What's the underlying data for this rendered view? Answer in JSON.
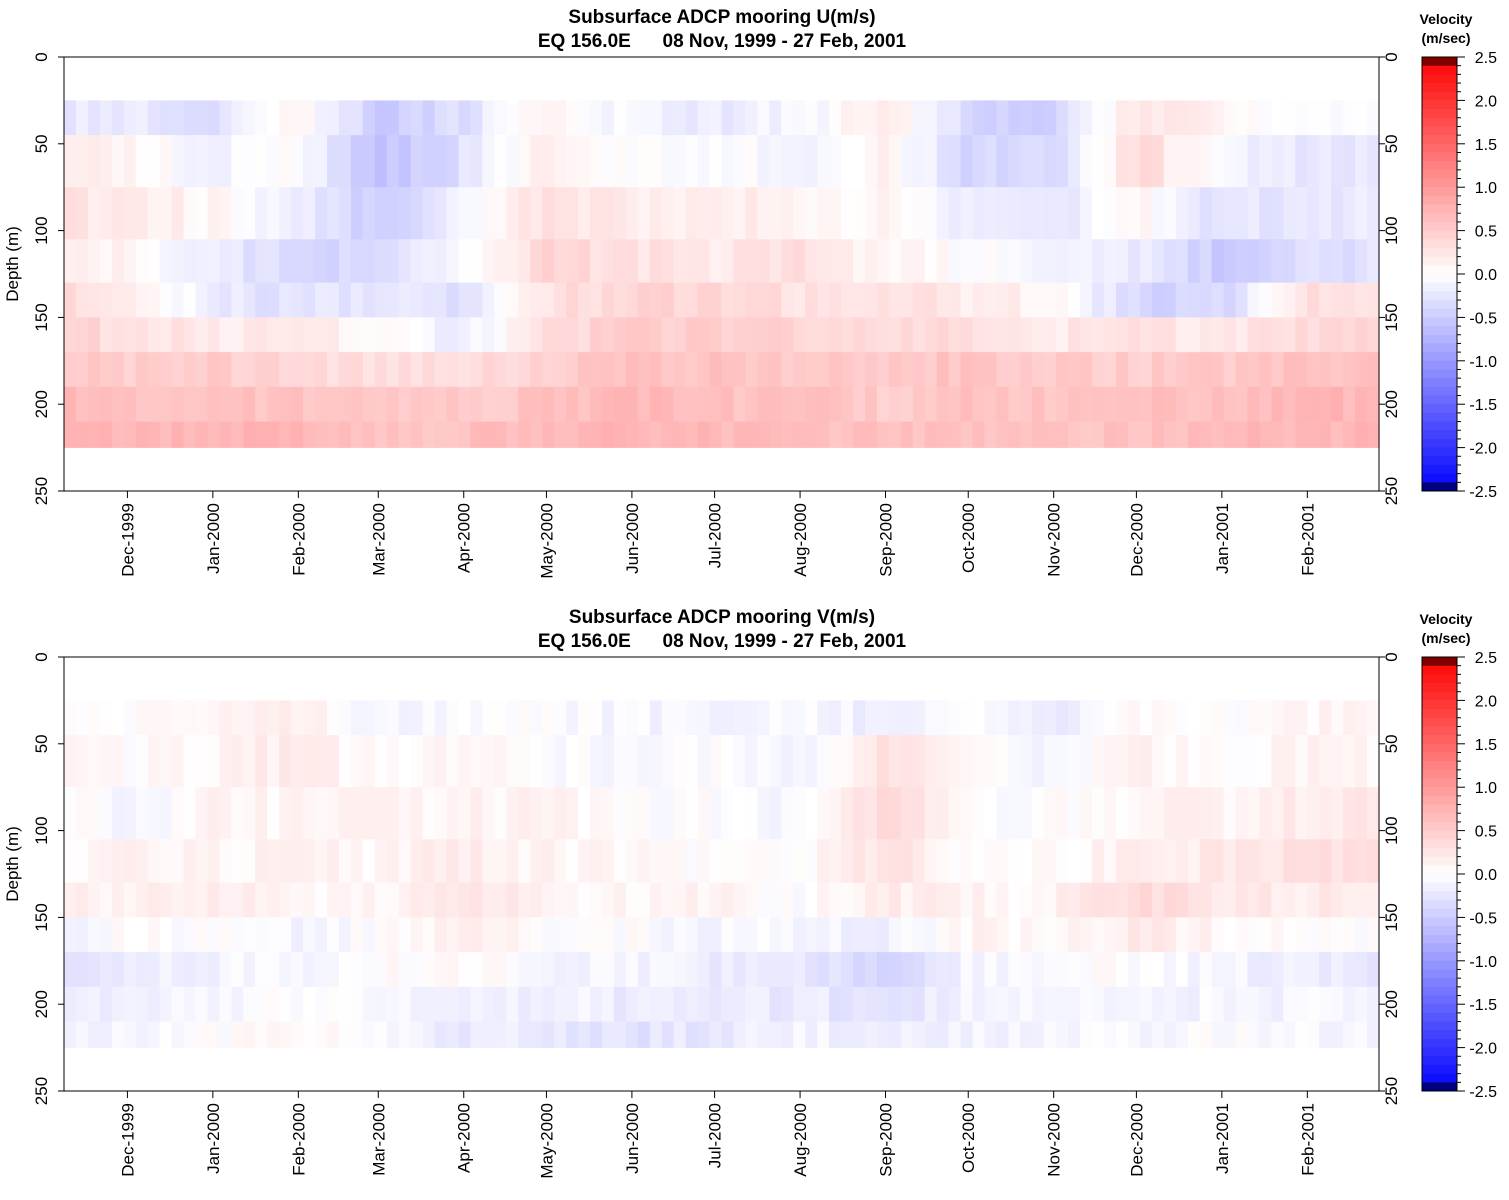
{
  "panels": [
    {
      "title": "Subsurface ADCP mooring U(m/s)",
      "subtitle": "EQ 156.0E      08 Nov, 1999 - 27 Feb, 2001",
      "ylabel": "Depth (m)",
      "colorbar_title_1": "Velocity",
      "colorbar_title_2": "(m/sec)"
    },
    {
      "title": "Subsurface ADCP mooring V(m/s)",
      "subtitle": "EQ 156.0E      08 Nov, 1999 - 27 Feb, 2001",
      "ylabel": "Depth (m)",
      "colorbar_title_1": "Velocity",
      "colorbar_title_2": "(m/sec)"
    }
  ],
  "colors": {
    "positive": "#ff0000",
    "negative": "#0000ff",
    "zero": "#ffffff",
    "max_end": "#800000",
    "min_end": "#000080"
  },
  "chart_data": [
    {
      "type": "heatmap",
      "variable": "U",
      "title": "Subsurface ADCP mooring U(m/s)",
      "subtitle": "EQ 156.0E      08 Nov, 1999 - 27 Feb, 2001",
      "ylabel": "Depth (m)",
      "x_range": [
        "1999-11-08",
        "2001-02-27"
      ],
      "y_range": [
        0,
        250
      ],
      "y_reversed": true,
      "y_ticks": [
        "0",
        "50",
        "100",
        "150",
        "200",
        "250"
      ],
      "x_tick_labels": [
        "Dec-1999",
        "Jan-2000",
        "Feb-2000",
        "Mar-2000",
        "Apr-2000",
        "May-2000",
        "Jun-2000",
        "Jul-2000",
        "Aug-2000",
        "Sep-2000",
        "Oct-2000",
        "Nov-2000",
        "Dec-2000",
        "Jan-2001",
        "Feb-2001"
      ],
      "colorbar_labels": [
        "2.5",
        "2.0",
        "1.5",
        "1.0",
        "0.5",
        "0.0",
        "-0.5",
        "-1.0",
        "-1.5",
        "-2.0",
        "-2.5"
      ],
      "colorbar_range": [
        -2.5,
        2.5
      ],
      "data_depth_range_m": [
        25,
        225
      ],
      "depths_m": [
        30,
        60,
        90,
        120,
        140,
        160,
        180,
        200,
        220
      ],
      "months": [
        "Nov-1999",
        "Dec-1999",
        "Jan-2000",
        "Feb-2000",
        "Mar-2000",
        "Apr-2000",
        "May-2000",
        "Jun-2000",
        "Jul-2000",
        "Aug-2000",
        "Sep-2000",
        "Oct-2000",
        "Nov-2000",
        "Dec-2000",
        "Jan-2001",
        "Feb-2001"
      ],
      "values": [
        [
          -0.2,
          -0.2,
          -0.3,
          0.1,
          -0.5,
          -0.3,
          0.1,
          -0.1,
          -0.2,
          -0.1,
          0.2,
          -0.4,
          -0.5,
          0.3,
          0.1,
          -0.1
        ],
        [
          0.2,
          0.1,
          -0.1,
          0.0,
          -0.6,
          -0.3,
          0.2,
          0.0,
          0.0,
          -0.1,
          0.1,
          -0.4,
          -0.4,
          0.4,
          -0.1,
          -0.2
        ],
        [
          0.3,
          0.2,
          0.1,
          -0.2,
          -0.5,
          -0.1,
          0.3,
          0.2,
          0.2,
          0.1,
          0.1,
          -0.2,
          -0.3,
          0.1,
          -0.3,
          -0.2
        ],
        [
          0.3,
          0.1,
          -0.2,
          -0.4,
          -0.4,
          0.0,
          0.4,
          0.3,
          0.2,
          0.3,
          0.1,
          0.0,
          -0.1,
          -0.2,
          -0.5,
          -0.3
        ],
        [
          0.4,
          0.2,
          -0.2,
          -0.3,
          -0.2,
          -0.3,
          0.3,
          0.4,
          0.4,
          0.3,
          0.3,
          0.2,
          0.1,
          -0.4,
          -0.4,
          0.3
        ],
        [
          0.5,
          0.3,
          0.2,
          0.2,
          0.1,
          -0.2,
          0.3,
          0.5,
          0.5,
          0.4,
          0.4,
          0.3,
          0.2,
          0.3,
          0.2,
          0.4
        ],
        [
          0.6,
          0.5,
          0.5,
          0.4,
          0.3,
          0.3,
          0.5,
          0.6,
          0.6,
          0.5,
          0.5,
          0.6,
          0.5,
          0.5,
          0.5,
          0.6
        ],
        [
          0.7,
          0.6,
          0.6,
          0.6,
          0.6,
          0.5,
          0.6,
          0.7,
          0.6,
          0.6,
          0.5,
          0.6,
          0.6,
          0.6,
          0.6,
          0.7
        ],
        [
          0.7,
          0.7,
          0.7,
          0.7,
          0.6,
          0.6,
          0.7,
          0.7,
          0.7,
          0.6,
          0.6,
          0.6,
          0.6,
          0.6,
          0.7,
          0.7
        ]
      ]
    },
    {
      "type": "heatmap",
      "variable": "V",
      "title": "Subsurface ADCP mooring V(m/s)",
      "subtitle": "EQ 156.0E      08 Nov, 1999 - 27 Feb, 2001",
      "ylabel": "Depth (m)",
      "x_range": [
        "1999-11-08",
        "2001-02-27"
      ],
      "y_range": [
        0,
        250
      ],
      "y_reversed": true,
      "y_ticks": [
        "0",
        "50",
        "100",
        "150",
        "200",
        "250"
      ],
      "x_tick_labels": [
        "Dec-1999",
        "Jan-2000",
        "Feb-2000",
        "Mar-2000",
        "Apr-2000",
        "May-2000",
        "Jun-2000",
        "Jul-2000",
        "Aug-2000",
        "Sep-2000",
        "Oct-2000",
        "Nov-2000",
        "Dec-2000",
        "Jan-2001",
        "Feb-2001"
      ],
      "colorbar_labels": [
        "2.5",
        "2.0",
        "1.5",
        "1.0",
        "0.5",
        "0.0",
        "-0.5",
        "-1.0",
        "-1.5",
        "-2.0",
        "-2.5"
      ],
      "colorbar_range": [
        -2.5,
        2.5
      ],
      "data_depth_range_m": [
        25,
        225
      ],
      "depths_m": [
        30,
        60,
        90,
        120,
        140,
        160,
        180,
        200,
        220
      ],
      "months": [
        "Nov-1999",
        "Dec-1999",
        "Jan-2000",
        "Feb-2000",
        "Mar-2000",
        "Apr-2000",
        "May-2000",
        "Jun-2000",
        "Jul-2000",
        "Aug-2000",
        "Sep-2000",
        "Oct-2000",
        "Nov-2000",
        "Dec-2000",
        "Jan-2001",
        "Feb-2001"
      ],
      "values": [
        [
          0.1,
          0.0,
          0.1,
          0.2,
          -0.1,
          0.0,
          0.0,
          -0.1,
          -0.1,
          0.0,
          -0.2,
          0.0,
          -0.2,
          0.1,
          0.0,
          0.1
        ],
        [
          0.2,
          0.0,
          0.1,
          0.2,
          0.0,
          0.1,
          0.0,
          -0.1,
          0.0,
          -0.1,
          0.3,
          0.0,
          -0.1,
          0.1,
          0.0,
          0.1
        ],
        [
          0.1,
          -0.1,
          0.1,
          0.1,
          0.1,
          0.1,
          0.1,
          0.0,
          0.0,
          -0.1,
          0.4,
          0.0,
          0.0,
          0.1,
          0.1,
          0.2
        ],
        [
          0.1,
          0.1,
          0.1,
          0.1,
          0.1,
          0.2,
          0.1,
          0.1,
          0.0,
          0.0,
          0.3,
          0.0,
          0.0,
          0.2,
          0.2,
          0.3
        ],
        [
          0.2,
          0.1,
          0.2,
          0.1,
          0.1,
          0.3,
          0.1,
          0.1,
          0.1,
          0.0,
          0.2,
          0.1,
          0.1,
          0.4,
          0.2,
          0.2
        ],
        [
          -0.1,
          0.0,
          0.0,
          -0.1,
          0.0,
          0.2,
          0.0,
          0.0,
          -0.1,
          -0.1,
          -0.2,
          0.1,
          0.1,
          0.2,
          0.1,
          0.0
        ],
        [
          -0.3,
          -0.2,
          -0.1,
          -0.1,
          0.0,
          0.1,
          -0.1,
          -0.1,
          -0.2,
          -0.2,
          -0.4,
          -0.1,
          0.0,
          0.0,
          -0.1,
          -0.2
        ],
        [
          -0.2,
          -0.2,
          -0.1,
          0.0,
          -0.1,
          -0.2,
          -0.1,
          -0.2,
          -0.2,
          -0.2,
          -0.3,
          -0.1,
          -0.1,
          -0.1,
          -0.1,
          -0.1
        ],
        [
          -0.1,
          -0.1,
          0.0,
          0.1,
          -0.1,
          -0.2,
          -0.2,
          -0.3,
          -0.2,
          -0.1,
          -0.2,
          -0.1,
          -0.1,
          -0.1,
          0.0,
          -0.1
        ]
      ]
    }
  ]
}
